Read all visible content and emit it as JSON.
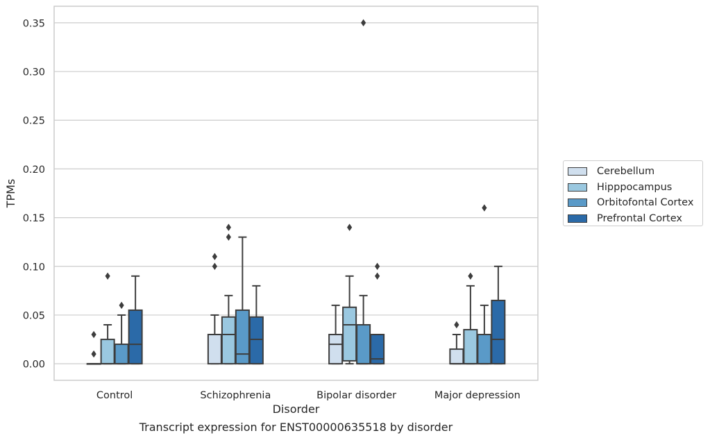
{
  "chart_data": {
    "type": "box",
    "title": "",
    "caption": "Transcript expression for ENST00000635518 by disorder",
    "xlabel": "Disorder",
    "ylabel": "TPMs",
    "ylim": [
      -0.017,
      0.367
    ],
    "yticks": [
      "0.00",
      "0.05",
      "0.10",
      "0.15",
      "0.20",
      "0.25",
      "0.30",
      "0.35"
    ],
    "grid": true,
    "legend_position": "right",
    "categories": [
      "Control",
      "Schizophrenia",
      "Bipolar disorder",
      "Major depression"
    ],
    "series": [
      {
        "name": "Cerebellum",
        "color": "#d0dfee",
        "boxes": [
          {
            "whisker_low": 0.0,
            "q1": 0.0,
            "median": 0.0,
            "q3": 0.0,
            "whisker_high": 0.0,
            "outliers": []
          },
          {
            "whisker_low": 0.0,
            "q1": 0.0,
            "median": 0.03,
            "q3": 0.03,
            "whisker_high": 0.05,
            "outliers": [
              0.1,
              0.11
            ]
          },
          {
            "whisker_low": 0.0,
            "q1": 0.0,
            "median": 0.02,
            "q3": 0.03,
            "whisker_high": 0.06,
            "outliers": []
          },
          {
            "whisker_low": 0.0,
            "q1": 0.0,
            "median": 0.0,
            "q3": 0.015,
            "whisker_high": 0.03,
            "outliers": [
              0.04
            ]
          }
        ]
      },
      {
        "name": "Hipppocampus",
        "color": "#9ac8e0",
        "boxes": [
          {
            "whisker_low": 0.0,
            "q1": 0.0,
            "median": 0.0,
            "q3": 0.025,
            "whisker_high": 0.04,
            "outliers": [
              0.09
            ]
          },
          {
            "whisker_low": 0.0,
            "q1": 0.0,
            "median": 0.03,
            "q3": 0.048,
            "whisker_high": 0.07,
            "outliers": []
          },
          {
            "whisker_low": 0.0,
            "q1": 0.003,
            "median": 0.04,
            "q3": 0.058,
            "whisker_high": 0.09,
            "outliers": [
              0.14
            ]
          },
          {
            "whisker_low": 0.0,
            "q1": 0.0,
            "median": 0.0,
            "q3": 0.035,
            "whisker_high": 0.08,
            "outliers": [
              0.09
            ]
          }
        ]
      },
      {
        "name": "Orbitofontal Cortex",
        "color": "#5a9ac8",
        "boxes": [
          {
            "whisker_low": 0.0,
            "q1": 0.0,
            "median": 0.0,
            "q3": 0.02,
            "whisker_high": 0.05,
            "outliers": [
              0.06
            ]
          },
          {
            "whisker_low": 0.0,
            "q1": 0.0,
            "median": 0.01,
            "q3": 0.055,
            "whisker_high": 0.13,
            "outliers": []
          },
          {
            "whisker_low": 0.0,
            "q1": 0.0,
            "median": 0.0,
            "q3": 0.04,
            "whisker_high": 0.07,
            "outliers": [
              0.35
            ]
          },
          {
            "whisker_low": 0.0,
            "q1": 0.0,
            "median": 0.0,
            "q3": 0.03,
            "whisker_high": 0.06,
            "outliers": [
              0.16
            ]
          }
        ]
      },
      {
        "name": "Prefrontal Cortex",
        "color": "#2b6aa8",
        "boxes": [
          {
            "whisker_low": 0.0,
            "q1": 0.0,
            "median": 0.02,
            "q3": 0.055,
            "whisker_high": 0.09,
            "outliers": []
          },
          {
            "whisker_low": 0.0,
            "q1": 0.0,
            "median": 0.025,
            "q3": 0.048,
            "whisker_high": 0.08,
            "outliers": []
          },
          {
            "whisker_low": 0.0,
            "q1": 0.0,
            "median": 0.005,
            "q3": 0.03,
            "whisker_high": 0.03,
            "outliers": [
              0.09,
              0.1
            ]
          },
          {
            "whisker_low": 0.0,
            "q1": 0.0,
            "median": 0.025,
            "q3": 0.065,
            "whisker_high": 0.1,
            "outliers": []
          }
        ]
      }
    ],
    "extra_outliers": [
      {
        "category_index": 0,
        "series_index": 0,
        "values": [
          0.01,
          0.03
        ]
      },
      {
        "category_index": 1,
        "series_index": 1,
        "values": [
          0.13,
          0.14
        ]
      }
    ]
  }
}
